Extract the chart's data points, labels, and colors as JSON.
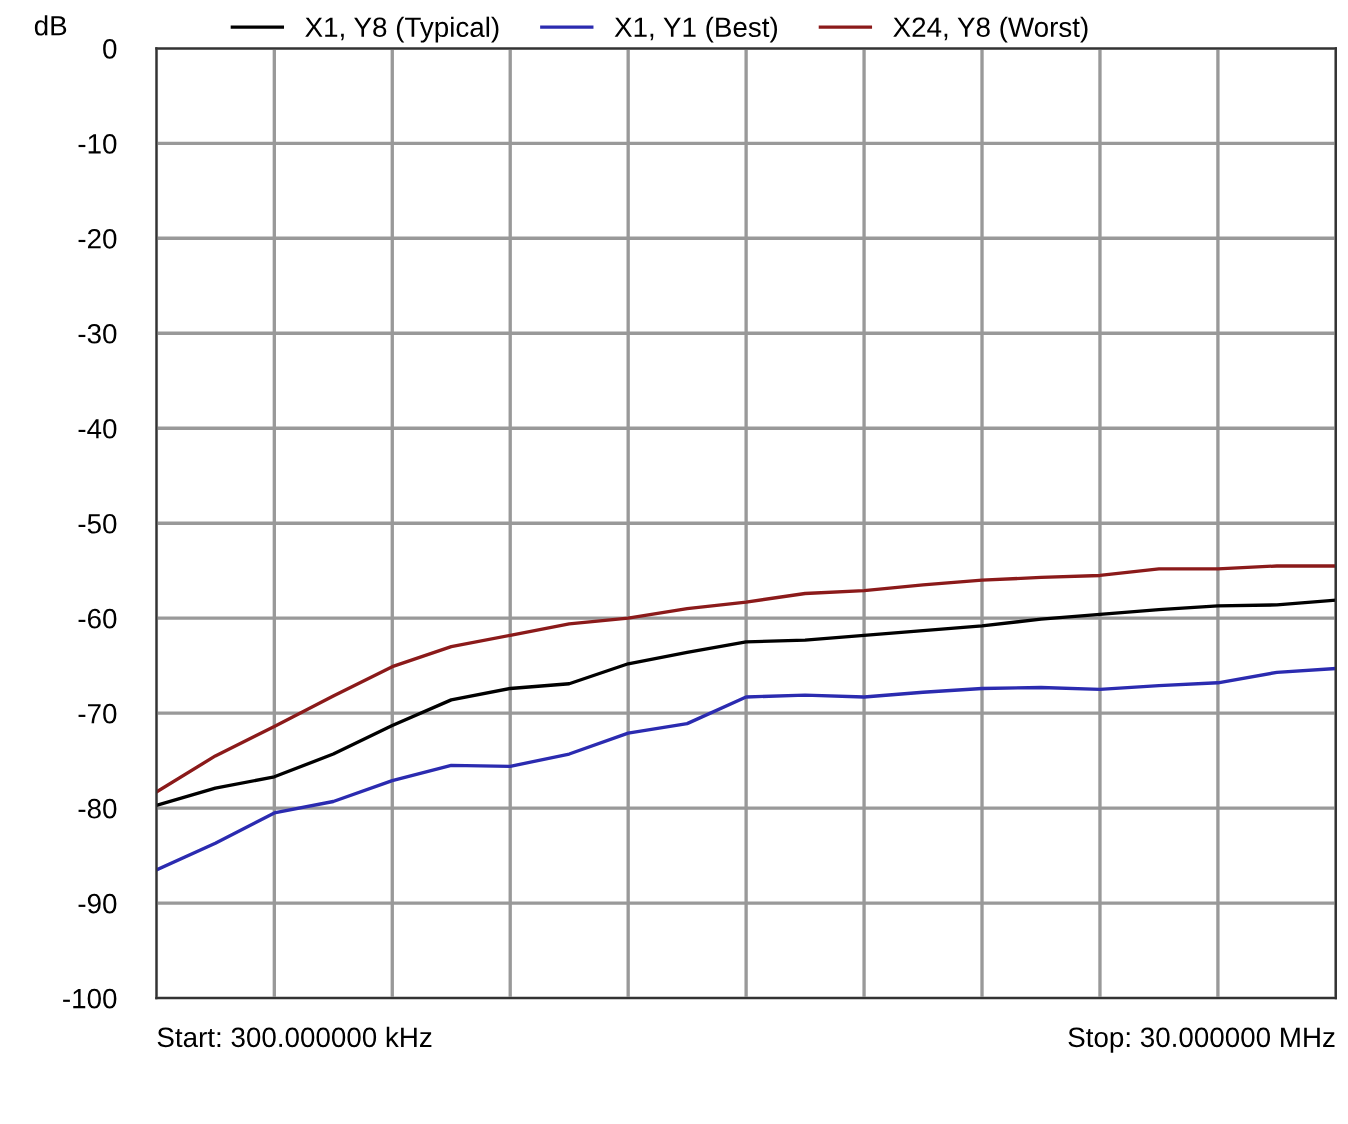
{
  "chart_data": {
    "type": "line",
    "ylabel": "dB",
    "categories": [
      null,
      null,
      null,
      null,
      null,
      null,
      null,
      null,
      null,
      null,
      null,
      null,
      null,
      null,
      null,
      null,
      null,
      null,
      null,
      null,
      null
    ],
    "series": [
      {
        "name": "X1, Y8 (Typical)",
        "color": "#000000",
        "values": [
          -79.7,
          -77.9,
          -76.7,
          -74.3,
          -71.3,
          -68.6,
          -67.4,
          -66.9,
          -64.8,
          -63.6,
          -62.5,
          -62.3,
          -61.8,
          -61.3,
          -60.8,
          -60.1,
          -59.6,
          -59.1,
          -58.7,
          -58.6,
          -58.1
        ]
      },
      {
        "name": "X1, Y1 (Best)",
        "color": "#2b2bb0",
        "values": [
          -86.5,
          -83.7,
          -80.5,
          -79.3,
          -77.1,
          -75.5,
          -75.6,
          -74.3,
          -72.1,
          -71.1,
          -68.3,
          -68.1,
          -68.3,
          -67.8,
          -67.4,
          -67.3,
          -67.5,
          -67.1,
          -66.8,
          -65.7,
          -65.3
        ]
      },
      {
        "name": "X24, Y8 (Worst)",
        "color": "#8b1a1a",
        "values": [
          -78.3,
          -74.5,
          -71.4,
          -68.2,
          -65.1,
          -63.0,
          -61.8,
          -60.6,
          -60.0,
          -59.0,
          -58.3,
          -57.4,
          -57.1,
          -56.5,
          -56.0,
          -55.7,
          -55.5,
          -54.8,
          -54.8,
          -54.5,
          -54.5
        ]
      }
    ],
    "ylim": [
      -100,
      0
    ],
    "yticks": [
      0,
      -10,
      -20,
      -30,
      -40,
      -50,
      -60,
      -70,
      -80,
      -90,
      -100
    ],
    "grid": true,
    "legend": "top",
    "marker": "none",
    "line_style": "solid",
    "tick_labels": "y",
    "annotations": [
      "Start: 300.000000 kHz",
      "Stop: 30.000000 MHz"
    ]
  }
}
